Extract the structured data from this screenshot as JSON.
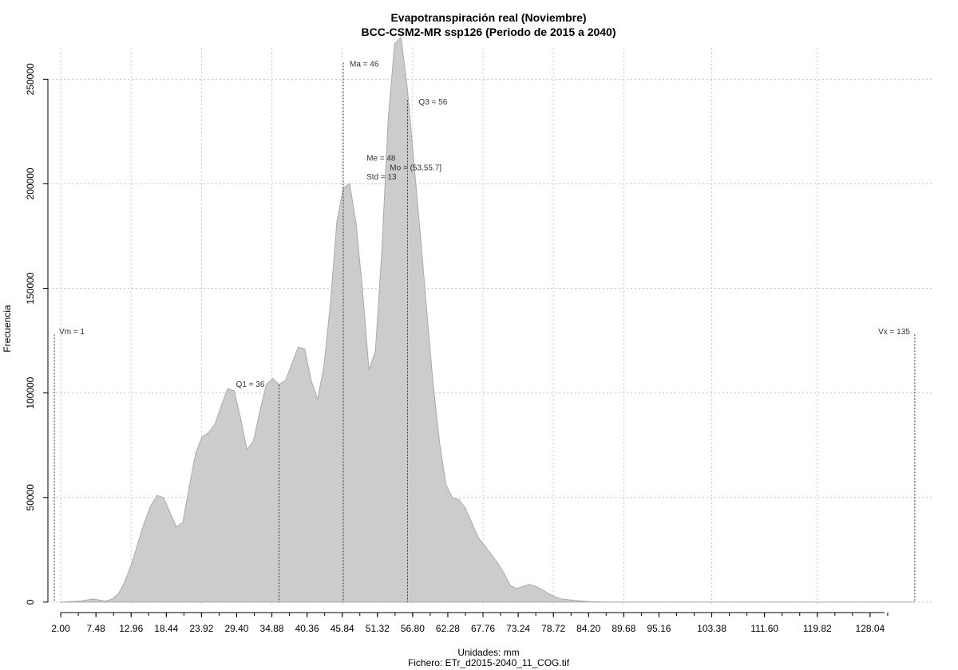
{
  "chart_data": {
    "type": "area",
    "title": "Evapotranspiración real (Noviembre)",
    "subtitle": "BCC-CSM2-MR ssp126 (Periodo de 2015 a 2040)",
    "xlabel": "Unidades: mm",
    "caption": "Fichero: ETr_d2015-2040_11_COG.tif",
    "ylabel": "Frecuencia",
    "xlim": [
      0,
      138
    ],
    "ylim": [
      -5000,
      265000
    ],
    "grid": true,
    "x_ticks": [
      2.0,
      7.48,
      12.96,
      18.44,
      23.92,
      29.4,
      34.88,
      40.36,
      45.84,
      51.32,
      56.8,
      62.28,
      67.76,
      73.24,
      78.72,
      84.2,
      89.68,
      95.16,
      103.38,
      111.6,
      119.82,
      128.04
    ],
    "x_tick_labels": [
      "2.00",
      "7.48",
      "12.96",
      "18.44",
      "23.92",
      "29.40",
      "34.88",
      "40.36",
      "45.84",
      "51.32",
      "56.80",
      "62.28",
      "67.76",
      "73.24",
      "78.72",
      "84.20",
      "89.68",
      "95.16",
      "103.38",
      "111.60",
      "119.82",
      "128.04"
    ],
    "y_ticks": [
      0,
      50000,
      100000,
      150000,
      200000,
      250000
    ],
    "y_tick_labels": [
      "0",
      "50000",
      "100000",
      "150000",
      "200000",
      "250000"
    ],
    "x": [
      2,
      5,
      7,
      8,
      9,
      10,
      11,
      12,
      13,
      14,
      15,
      16,
      17,
      18,
      19,
      20,
      21,
      22,
      23,
      24,
      25,
      26,
      27,
      28,
      29,
      30,
      31,
      32,
      33,
      34,
      35,
      36,
      37,
      38,
      39,
      40,
      41,
      42,
      43,
      44,
      45,
      46,
      47,
      48,
      49,
      50,
      51,
      52,
      53,
      54,
      55,
      56,
      57,
      58,
      59,
      60,
      61,
      62,
      63,
      64,
      65,
      66,
      67,
      68,
      69,
      70,
      71,
      72,
      73,
      74,
      75,
      76,
      77,
      78,
      79,
      80,
      82,
      84,
      86,
      88,
      90,
      95,
      100,
      110,
      120,
      130,
      135
    ],
    "y": [
      0,
      500,
      1500,
      1000,
      500,
      1500,
      4000,
      10000,
      18000,
      28000,
      38000,
      46000,
      51000,
      50000,
      43000,
      36000,
      38000,
      55000,
      71000,
      79000,
      81000,
      85000,
      94000,
      102000,
      101000,
      88000,
      73000,
      77000,
      91000,
      104000,
      107000,
      104000,
      106000,
      114000,
      122000,
      121000,
      106000,
      97000,
      113000,
      143000,
      182000,
      198000,
      200000,
      181000,
      149000,
      111000,
      120000,
      168000,
      231000,
      267000,
      270000,
      245000,
      210000,
      176000,
      139000,
      104000,
      76000,
      56000,
      50000,
      49000,
      45000,
      38000,
      31000,
      27000,
      23000,
      19000,
      14000,
      8000,
      6500,
      7500,
      8500,
      7500,
      6000,
      4000,
      2500,
      1500,
      800,
      300,
      100,
      50,
      20,
      5,
      2,
      1,
      0.5,
      0.2,
      0
    ],
    "fill_color": "#cccccc",
    "line_color": "#aaaaaa",
    "annotations": [
      {
        "label": "Vm = 1",
        "x": 1
      },
      {
        "label": "Q1 = 36",
        "x": 36
      },
      {
        "label": "Ma = 46",
        "x": 46
      },
      {
        "label": "Me = 48",
        "x": 48
      },
      {
        "label": "Mo = (53,55.7]",
        "x": 53
      },
      {
        "label": "Std = 13",
        "x": 48
      },
      {
        "label": "Q3 = 56",
        "x": 56
      },
      {
        "label": "Vx = 135",
        "x": 135
      }
    ]
  }
}
